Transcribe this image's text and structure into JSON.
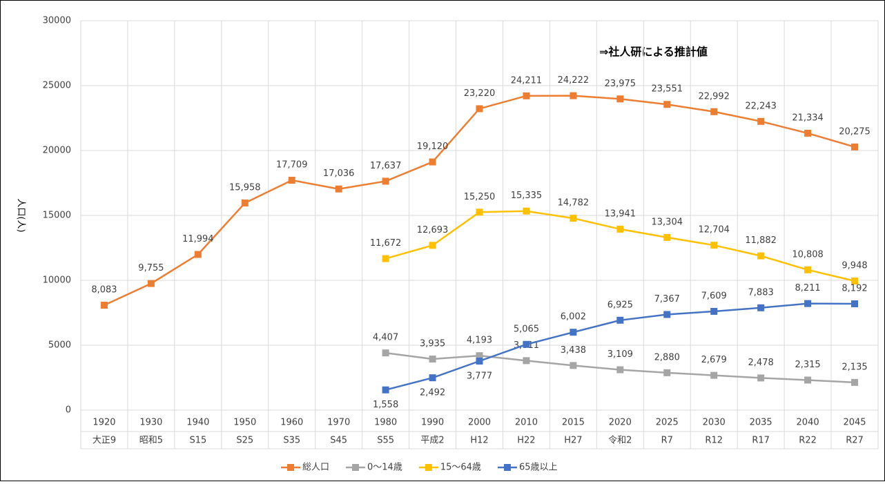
{
  "chart_data": {
    "type": "line",
    "y_label": "人口(人)",
    "annotation": "⇒社人研による推計値",
    "categories": [
      "1920",
      "1930",
      "1940",
      "1950",
      "1960",
      "1970",
      "1980",
      "1990",
      "2000",
      "2010",
      "2015",
      "2020",
      "2025",
      "2030",
      "2035",
      "2040",
      "2045"
    ],
    "categories2": [
      "大正9",
      "昭和5",
      "S15",
      "S25",
      "S35",
      "S45",
      "S55",
      "平成2",
      "H12",
      "H22",
      "H27",
      "令和2",
      "R7",
      "R12",
      "R17",
      "R22",
      "R27"
    ],
    "ylim": [
      0,
      30000
    ],
    "yticks": [
      0,
      5000,
      10000,
      15000,
      20000,
      25000,
      30000
    ],
    "grid": true,
    "legend": "bottom",
    "series": [
      {
        "name": "総人口",
        "color": "#ed7d31",
        "values": [
          8083,
          9755,
          11994,
          15958,
          17709,
          17036,
          17637,
          19120,
          23220,
          24211,
          24222,
          23975,
          23551,
          22992,
          22243,
          21334,
          20275
        ],
        "value_labels": [
          "8,083",
          "9,755",
          "11,994",
          "15,958",
          "17,709",
          "17,036",
          "17,637",
          "19,120",
          "23,220",
          "24,211",
          "24,222",
          "23,975",
          "23,551",
          "22,992",
          "22,243",
          "21,334",
          "20,275"
        ]
      },
      {
        "name": "0～14歳",
        "color": "#a5a5a5",
        "values": [
          null,
          null,
          null,
          null,
          null,
          null,
          4407,
          3935,
          4193,
          3811,
          3438,
          3109,
          2880,
          2679,
          2478,
          2315,
          2135
        ],
        "value_labels": [
          null,
          null,
          null,
          null,
          null,
          null,
          "4,407",
          "3,935",
          "4,193",
          "3,811",
          "3,438",
          "3,109",
          "2,880",
          "2,679",
          "2,478",
          "2,315",
          "2,135"
        ]
      },
      {
        "name": "15～64歳",
        "color": "#ffc000",
        "values": [
          null,
          null,
          null,
          null,
          null,
          null,
          11672,
          12693,
          15250,
          15335,
          14782,
          13941,
          13304,
          12704,
          11882,
          10808,
          9948
        ],
        "value_labels": [
          null,
          null,
          null,
          null,
          null,
          null,
          "11,672",
          "12,693",
          "15,250",
          "15,335",
          "14,782",
          "13,941",
          "13,304",
          "12,704",
          "11,882",
          "10,808",
          "9,948"
        ]
      },
      {
        "name": "65歳以上",
        "color": "#4472c4",
        "values": [
          null,
          null,
          null,
          null,
          null,
          null,
          1558,
          2492,
          3777,
          5065,
          6002,
          6925,
          7367,
          7609,
          7883,
          8211,
          8192
        ],
        "value_labels": [
          null,
          null,
          null,
          null,
          null,
          null,
          "1,558",
          "2,492",
          "3,777",
          "5,065",
          "6,002",
          "6,925",
          "7,367",
          "7,609",
          "7,883",
          "8,211",
          "8,192"
        ]
      }
    ]
  }
}
